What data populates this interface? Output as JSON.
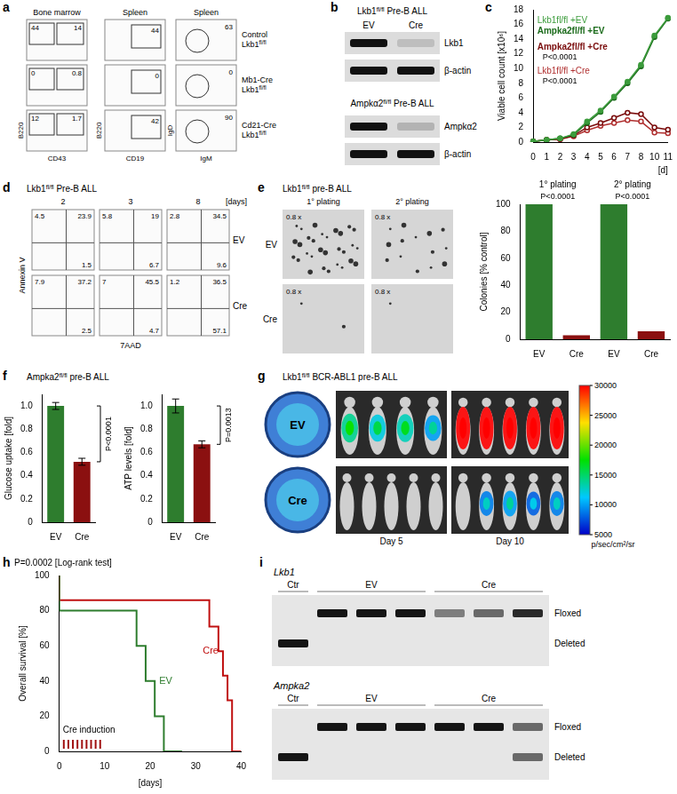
{
  "chart_data": [
    {
      "label": "c",
      "type": "line",
      "categories": [
        "0",
        "1",
        "2",
        "3",
        "4",
        "5",
        "6",
        "7",
        "8",
        "10",
        "11"
      ],
      "x_label": "[d]",
      "y_label": "Viable cell count [x10⁶]",
      "ylim": [
        0,
        18
      ],
      "yticks": [
        0,
        2,
        4,
        6,
        8,
        10,
        12,
        14,
        16,
        18
      ],
      "grid": false,
      "series": [
        {
          "name": "Lkb1fl/fl +EV",
          "color": "#3c9c3c",
          "marker": "circle",
          "values": [
            0.1,
            0.3,
            0.5,
            1.1,
            2.8,
            4.3,
            6.2,
            8.2,
            10.5,
            14.5,
            16.9
          ]
        },
        {
          "name": "Ampka2fl/fl +EV",
          "color": "#1b6b1b",
          "marker": "circle",
          "values": [
            0.1,
            0.3,
            0.5,
            1.0,
            2.6,
            4.1,
            6.0,
            8.0,
            10.3,
            14.3,
            16.8
          ]
        },
        {
          "name": "Ampka2fl/fl +Cre",
          "color": "#7a0c0c",
          "marker": "open_circle",
          "values": [
            0.1,
            0.3,
            0.4,
            0.9,
            2.0,
            2.6,
            3.3,
            4.0,
            3.8,
            2.0,
            1.7
          ],
          "annotation": "P<0.0001"
        },
        {
          "name": "Lkb1fl/fl +Cre",
          "color": "#b03030",
          "marker": "open_circle",
          "values": [
            0.1,
            0.3,
            0.4,
            0.8,
            1.6,
            2.2,
            2.6,
            3.0,
            2.8,
            1.3,
            1.2
          ],
          "annotation": "P<0.0001"
        }
      ]
    },
    {
      "type": "bar",
      "categories": [
        "EV",
        "Cre",
        "EV",
        "Cre"
      ],
      "values": [
        100,
        3,
        100,
        6
      ],
      "colors": [
        "#2e7d2e",
        "#8b1010",
        "#2e7d2e",
        "#8b1010"
      ],
      "group_labels": [
        "1° plating",
        "2° plating"
      ],
      "annotations": [
        "P<0.0001",
        "P<0.0001"
      ],
      "y_label": "Colonies [% control]",
      "ylim": [
        0,
        100
      ],
      "yticks": [
        0,
        20,
        40,
        60,
        80,
        100
      ],
      "grid": false
    },
    {
      "label": "f",
      "title": "Ampka2fl/fl pre-B ALL",
      "type": "bar",
      "categories": [
        "EV",
        "Cre"
      ],
      "values": [
        1.0,
        0.52
      ],
      "errors": [
        0.03,
        0.03
      ],
      "colors": [
        "#2e7d2e",
        "#8b1010"
      ],
      "annotation": "P<0.0001",
      "y_label": "Glucose uptake [fold]",
      "ylim": [
        0,
        1.1
      ],
      "yticks": [
        0,
        0.2,
        0.4,
        0.6,
        0.8,
        {
          "value": 1,
          "label": "1.0"
        }
      ],
      "grid": false
    },
    {
      "type": "bar",
      "categories": [
        "EV",
        "Cre"
      ],
      "values": [
        1.0,
        0.67
      ],
      "errors": [
        0.06,
        0.03
      ],
      "colors": [
        "#2e7d2e",
        "#8b1010"
      ],
      "annotation": "P=0.0013",
      "y_label": "ATP levels [fold]",
      "ylim": [
        0,
        1.1
      ],
      "yticks": [
        0,
        0.2,
        0.4,
        0.6,
        0.8,
        {
          "value": 1,
          "label": "1.0"
        }
      ],
      "grid": false
    },
    {
      "label": "h",
      "type": "line",
      "title": "P=0.0002 [Log-rank test]",
      "line_style": "step",
      "x_label": "[days]",
      "y_label": "Overall survival [%]",
      "xlim": [
        0,
        40
      ],
      "xticks": [
        0,
        10,
        20,
        30,
        40
      ],
      "ylim": [
        0,
        100
      ],
      "yticks": [
        0,
        20,
        40,
        60,
        80,
        100
      ],
      "grid": false,
      "series": [
        {
          "name": "EV",
          "color": "#2e7d2e",
          "x": [
            0,
            17,
            19,
            21,
            23,
            27
          ],
          "values": [
            100,
            80,
            60,
            40,
            20,
            0
          ]
        },
        {
          "name": "Cre",
          "color": "#c01010",
          "x": [
            0,
            33,
            35,
            36,
            37,
            38,
            40
          ],
          "values": [
            100,
            86,
            71,
            57,
            43,
            29,
            0
          ]
        }
      ],
      "annotation": {
        "text": "Cre induction",
        "days": [
          1,
          2,
          3,
          4,
          5,
          6,
          7,
          8,
          9
        ],
        "color": "#a01010"
      }
    }
  ],
  "panel_a": {
    "label": "a",
    "columns": [
      {
        "title": "Bone marrow",
        "x_label": "CD43",
        "y_label": "B220"
      },
      {
        "title": "Spleen",
        "x_label": "CD19",
        "y_label": "B220"
      },
      {
        "title": "Spleen",
        "x_label": "IgM",
        "y_label": "IgD"
      }
    ],
    "rows": [
      {
        "name": [
          "Control",
          "Lkb1fl/fl"
        ],
        "gates": [
          [
            44,
            14
          ],
          [
            44
          ],
          [
            63
          ]
        ]
      },
      {
        "name": [
          "Mb1-Cre",
          "Lkb1fl/fl"
        ],
        "gates": [
          [
            0,
            0.8
          ],
          [
            0
          ],
          [
            0
          ]
        ]
      },
      {
        "name": [
          "Cd21-Cre",
          "Lkb1fl/fl"
        ],
        "gates": [
          [
            12,
            1.7
          ],
          [
            42
          ],
          [
            90
          ]
        ]
      }
    ]
  },
  "panel_b": {
    "label": "b",
    "blots": [
      {
        "title": "Lkb1fl/fl Pre-B ALL",
        "lanes": [
          "EV",
          "Cre"
        ],
        "rows": [
          {
            "name": "Lkb1",
            "intensity": [
              1,
              0.15
            ]
          },
          {
            "name": "β-actin",
            "intensity": [
              1,
              1
            ]
          }
        ]
      },
      {
        "title": "Ampkα2fl/fl Pre-B ALL",
        "rows": [
          {
            "name": "Ampkα2",
            "intensity": [
              1,
              0.2
            ]
          },
          {
            "name": "β-actin",
            "intensity": [
              1,
              1
            ]
          }
        ]
      }
    ]
  },
  "panel_d": {
    "label": "d",
    "title": "Lkb1fl/fl Pre-B ALL",
    "days": [
      2,
      3,
      8
    ],
    "days_label": "[days]",
    "x_label": "7AAD",
    "y_label": "Annexin V",
    "rows": [
      {
        "name": "EV",
        "quadrants": [
          [
            4.5,
            23.9,
            1.5
          ],
          [
            5.8,
            19,
            6.7
          ],
          [
            2.8,
            34.5,
            9.6
          ]
        ]
      },
      {
        "name": "Cre",
        "quadrants": [
          [
            7.9,
            37.2,
            2.5
          ],
          [
            7,
            45.5,
            4.7
          ],
          [
            1.2,
            36.5,
            57.1
          ]
        ]
      }
    ]
  },
  "panel_e": {
    "label": "e",
    "title": "Lkb1fl/fl pre-B ALL",
    "columns": [
      "1° plating",
      "2° plating"
    ],
    "rows": [
      "EV",
      "Cre"
    ],
    "magnification": "0.8 x",
    "colonies": [
      [
        30,
        14
      ],
      [
        2,
        1
      ]
    ]
  },
  "panel_g": {
    "label": "g",
    "title": "Lkb1fl/fl BCR-ABL1 pre-B ALL",
    "day_labels": [
      "Day 5",
      "Day 10"
    ],
    "rows": [
      {
        "name": "EV",
        "signal": [
          [
            14000,
            12000,
            13000,
            10000
          ],
          [
            30000,
            30000,
            30000,
            30000,
            30000
          ]
        ]
      },
      {
        "name": "Cre",
        "signal": [
          [
            0,
            0,
            0,
            0,
            0
          ],
          [
            0,
            9000,
            10000,
            8000,
            9000
          ]
        ]
      }
    ],
    "colorbar": {
      "range": [
        5000,
        30000
      ],
      "ticks": [
        5000,
        10000,
        15000,
        20000,
        25000,
        30000
      ],
      "label": "p/sec/cm²/sr"
    }
  },
  "panel_i": {
    "label": "i",
    "gels": [
      {
        "title": "Lkb1",
        "groups": [
          {
            "name": "Ctr",
            "lanes": 1
          },
          {
            "name": "EV",
            "lanes": 3
          },
          {
            "name": "Cre",
            "lanes": 3
          }
        ],
        "band_labels": [
          "Floxed",
          "Deleted"
        ],
        "floxed": [
          0,
          1,
          1,
          1,
          0.5,
          0.6,
          0.9
        ],
        "deleted": [
          1,
          0,
          0,
          0,
          0,
          0,
          0
        ]
      },
      {
        "title": "Ampka2",
        "groups": [
          {
            "name": "Ctr",
            "lanes": 1
          },
          {
            "name": "EV",
            "lanes": 3
          },
          {
            "name": "Cre",
            "lanes": 3
          }
        ],
        "band_labels": [
          "Floxed",
          "Deleted"
        ],
        "floxed": [
          0,
          1,
          1,
          1,
          1,
          1,
          0.6
        ],
        "deleted": [
          1,
          0,
          0,
          0,
          0,
          0,
          0.6
        ]
      }
    ]
  }
}
